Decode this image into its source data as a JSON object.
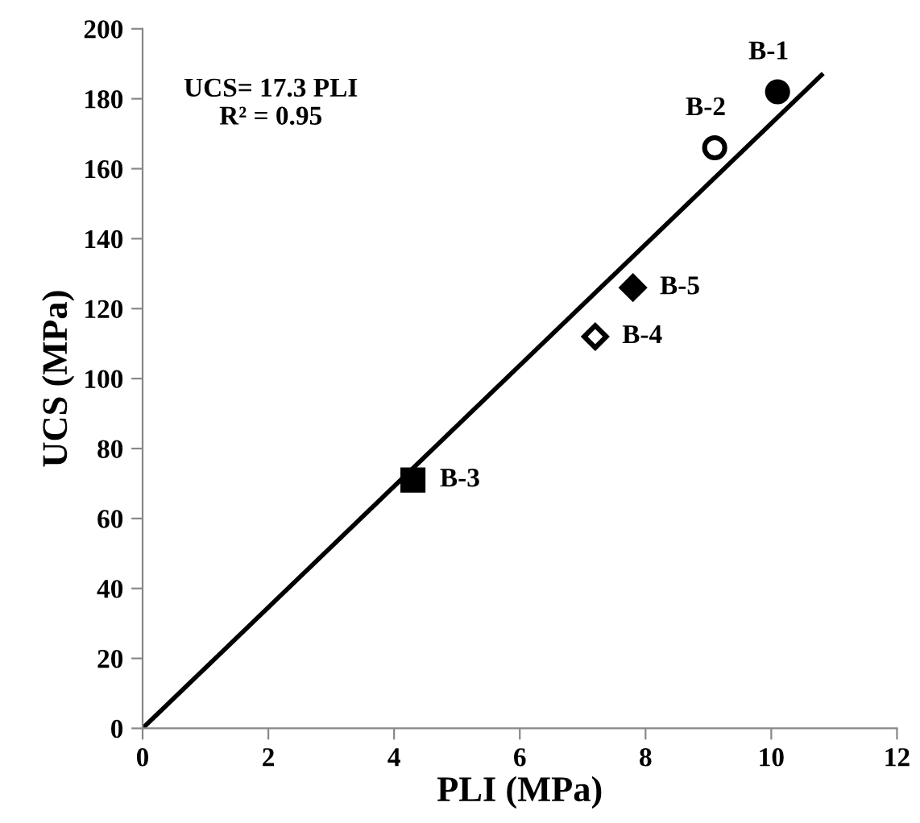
{
  "chart_data": {
    "type": "scatter",
    "xlabel": "PLI (MPa)",
    "ylabel": "UCS (MPa)",
    "xlim": [
      0,
      12
    ],
    "xticks": [
      0,
      2,
      4,
      6,
      8,
      10,
      12
    ],
    "ylim": [
      0,
      200
    ],
    "yticks": [
      0,
      20,
      40,
      60,
      80,
      100,
      120,
      140,
      160,
      180,
      200
    ],
    "grid": false,
    "legend": false,
    "annotations": [
      "UCS= 17.3 PLI\nR² = 0.95"
    ],
    "series": [
      {
        "name": "B-1",
        "x": [
          10.1
        ],
        "values": [
          182
        ],
        "color": "#000000",
        "marker": "circle"
      },
      {
        "name": "B-2",
        "x": [
          9.1
        ],
        "values": [
          166
        ],
        "color": "#ffffff",
        "marker": "circle"
      },
      {
        "name": "B-3",
        "x": [
          4.3
        ],
        "values": [
          71
        ],
        "color": "#000000",
        "marker": "square"
      },
      {
        "name": "B-4",
        "x": [
          7.2
        ],
        "values": [
          112
        ],
        "color": "#ffffff",
        "marker": "diamond"
      },
      {
        "name": "B-5",
        "x": [
          7.8
        ],
        "values": [
          126
        ],
        "color": "#000000",
        "marker": "diamond"
      },
      {
        "type": "line",
        "x": [
          0,
          10.8
        ],
        "values": [
          0,
          186.8
        ],
        "color": "#000000",
        "line_style": "solid",
        "marker": "none"
      }
    ]
  }
}
